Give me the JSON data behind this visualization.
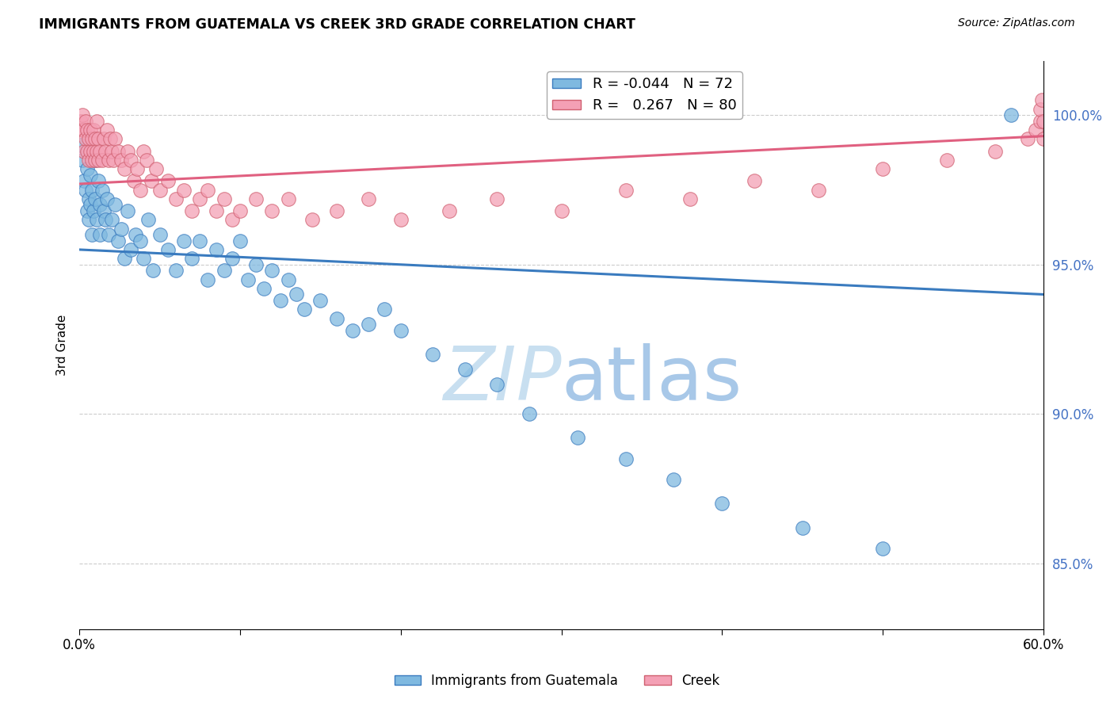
{
  "title": "IMMIGRANTS FROM GUATEMALA VS CREEK 3RD GRADE CORRELATION CHART",
  "source": "Source: ZipAtlas.com",
  "xlabel_blue": "Immigrants from Guatemala",
  "xlabel_pink": "Creek",
  "ylabel": "3rd Grade",
  "legend_blue_r": "-0.044",
  "legend_blue_n": "72",
  "legend_pink_r": "0.267",
  "legend_pink_n": "80",
  "color_blue": "#7fb9e0",
  "color_pink": "#f4a0b5",
  "color_trendline_blue": "#3a7bbf",
  "color_trendline_pink": "#e06080",
  "watermark_color": "#c8dff0",
  "xlim": [
    0.0,
    0.6
  ],
  "ylim": [
    0.828,
    1.018
  ],
  "yticks": [
    0.85,
    0.9,
    0.95,
    1.0
  ],
  "ytick_labels": [
    "85.0%",
    "90.0%",
    "95.0%",
    "100.0%"
  ],
  "xticks": [
    0.0,
    0.1,
    0.2,
    0.3,
    0.4,
    0.5,
    0.6
  ],
  "xtick_labels": [
    "0.0%",
    "",
    "",
    "",
    "",
    "",
    "60.0%"
  ],
  "blue_x": [
    0.001,
    0.002,
    0.003,
    0.004,
    0.005,
    0.005,
    0.006,
    0.006,
    0.007,
    0.007,
    0.008,
    0.008,
    0.009,
    0.01,
    0.01,
    0.011,
    0.012,
    0.013,
    0.013,
    0.014,
    0.015,
    0.016,
    0.017,
    0.018,
    0.02,
    0.022,
    0.024,
    0.026,
    0.028,
    0.03,
    0.032,
    0.035,
    0.038,
    0.04,
    0.043,
    0.046,
    0.05,
    0.055,
    0.06,
    0.065,
    0.07,
    0.075,
    0.08,
    0.085,
    0.09,
    0.095,
    0.1,
    0.105,
    0.11,
    0.115,
    0.12,
    0.125,
    0.13,
    0.135,
    0.14,
    0.15,
    0.16,
    0.17,
    0.18,
    0.19,
    0.2,
    0.22,
    0.24,
    0.26,
    0.28,
    0.31,
    0.34,
    0.37,
    0.4,
    0.45,
    0.5,
    0.58
  ],
  "blue_y": [
    0.99,
    0.985,
    0.978,
    0.975,
    0.982,
    0.968,
    0.972,
    0.965,
    0.98,
    0.97,
    0.975,
    0.96,
    0.968,
    0.972,
    0.985,
    0.965,
    0.978,
    0.96,
    0.97,
    0.975,
    0.968,
    0.965,
    0.972,
    0.96,
    0.965,
    0.97,
    0.958,
    0.962,
    0.952,
    0.968,
    0.955,
    0.96,
    0.958,
    0.952,
    0.965,
    0.948,
    0.96,
    0.955,
    0.948,
    0.958,
    0.952,
    0.958,
    0.945,
    0.955,
    0.948,
    0.952,
    0.958,
    0.945,
    0.95,
    0.942,
    0.948,
    0.938,
    0.945,
    0.94,
    0.935,
    0.938,
    0.932,
    0.928,
    0.93,
    0.935,
    0.928,
    0.92,
    0.915,
    0.91,
    0.9,
    0.892,
    0.885,
    0.878,
    0.87,
    0.862,
    0.855,
    1.0
  ],
  "pink_x": [
    0.001,
    0.002,
    0.002,
    0.003,
    0.003,
    0.004,
    0.004,
    0.005,
    0.005,
    0.006,
    0.006,
    0.007,
    0.007,
    0.008,
    0.008,
    0.009,
    0.009,
    0.01,
    0.01,
    0.011,
    0.011,
    0.012,
    0.012,
    0.013,
    0.014,
    0.015,
    0.016,
    0.017,
    0.018,
    0.019,
    0.02,
    0.021,
    0.022,
    0.024,
    0.026,
    0.028,
    0.03,
    0.032,
    0.034,
    0.036,
    0.038,
    0.04,
    0.042,
    0.045,
    0.048,
    0.05,
    0.055,
    0.06,
    0.065,
    0.07,
    0.075,
    0.08,
    0.085,
    0.09,
    0.095,
    0.1,
    0.11,
    0.12,
    0.13,
    0.145,
    0.16,
    0.18,
    0.2,
    0.23,
    0.26,
    0.3,
    0.34,
    0.38,
    0.42,
    0.46,
    0.5,
    0.54,
    0.57,
    0.59,
    0.595,
    0.598,
    0.598,
    0.599,
    0.6,
    0.6
  ],
  "pink_y": [
    0.998,
    0.995,
    1.0,
    0.988,
    0.995,
    0.992,
    0.998,
    0.988,
    0.995,
    0.985,
    0.992,
    0.988,
    0.995,
    0.985,
    0.992,
    0.988,
    0.995,
    0.985,
    0.992,
    0.988,
    0.998,
    0.985,
    0.992,
    0.988,
    0.985,
    0.992,
    0.988,
    0.995,
    0.985,
    0.992,
    0.988,
    0.985,
    0.992,
    0.988,
    0.985,
    0.982,
    0.988,
    0.985,
    0.978,
    0.982,
    0.975,
    0.988,
    0.985,
    0.978,
    0.982,
    0.975,
    0.978,
    0.972,
    0.975,
    0.968,
    0.972,
    0.975,
    0.968,
    0.972,
    0.965,
    0.968,
    0.972,
    0.968,
    0.972,
    0.965,
    0.968,
    0.972,
    0.965,
    0.968,
    0.972,
    0.968,
    0.975,
    0.972,
    0.978,
    0.975,
    0.982,
    0.985,
    0.988,
    0.992,
    0.995,
    0.998,
    1.002,
    1.005,
    0.998,
    0.992
  ]
}
